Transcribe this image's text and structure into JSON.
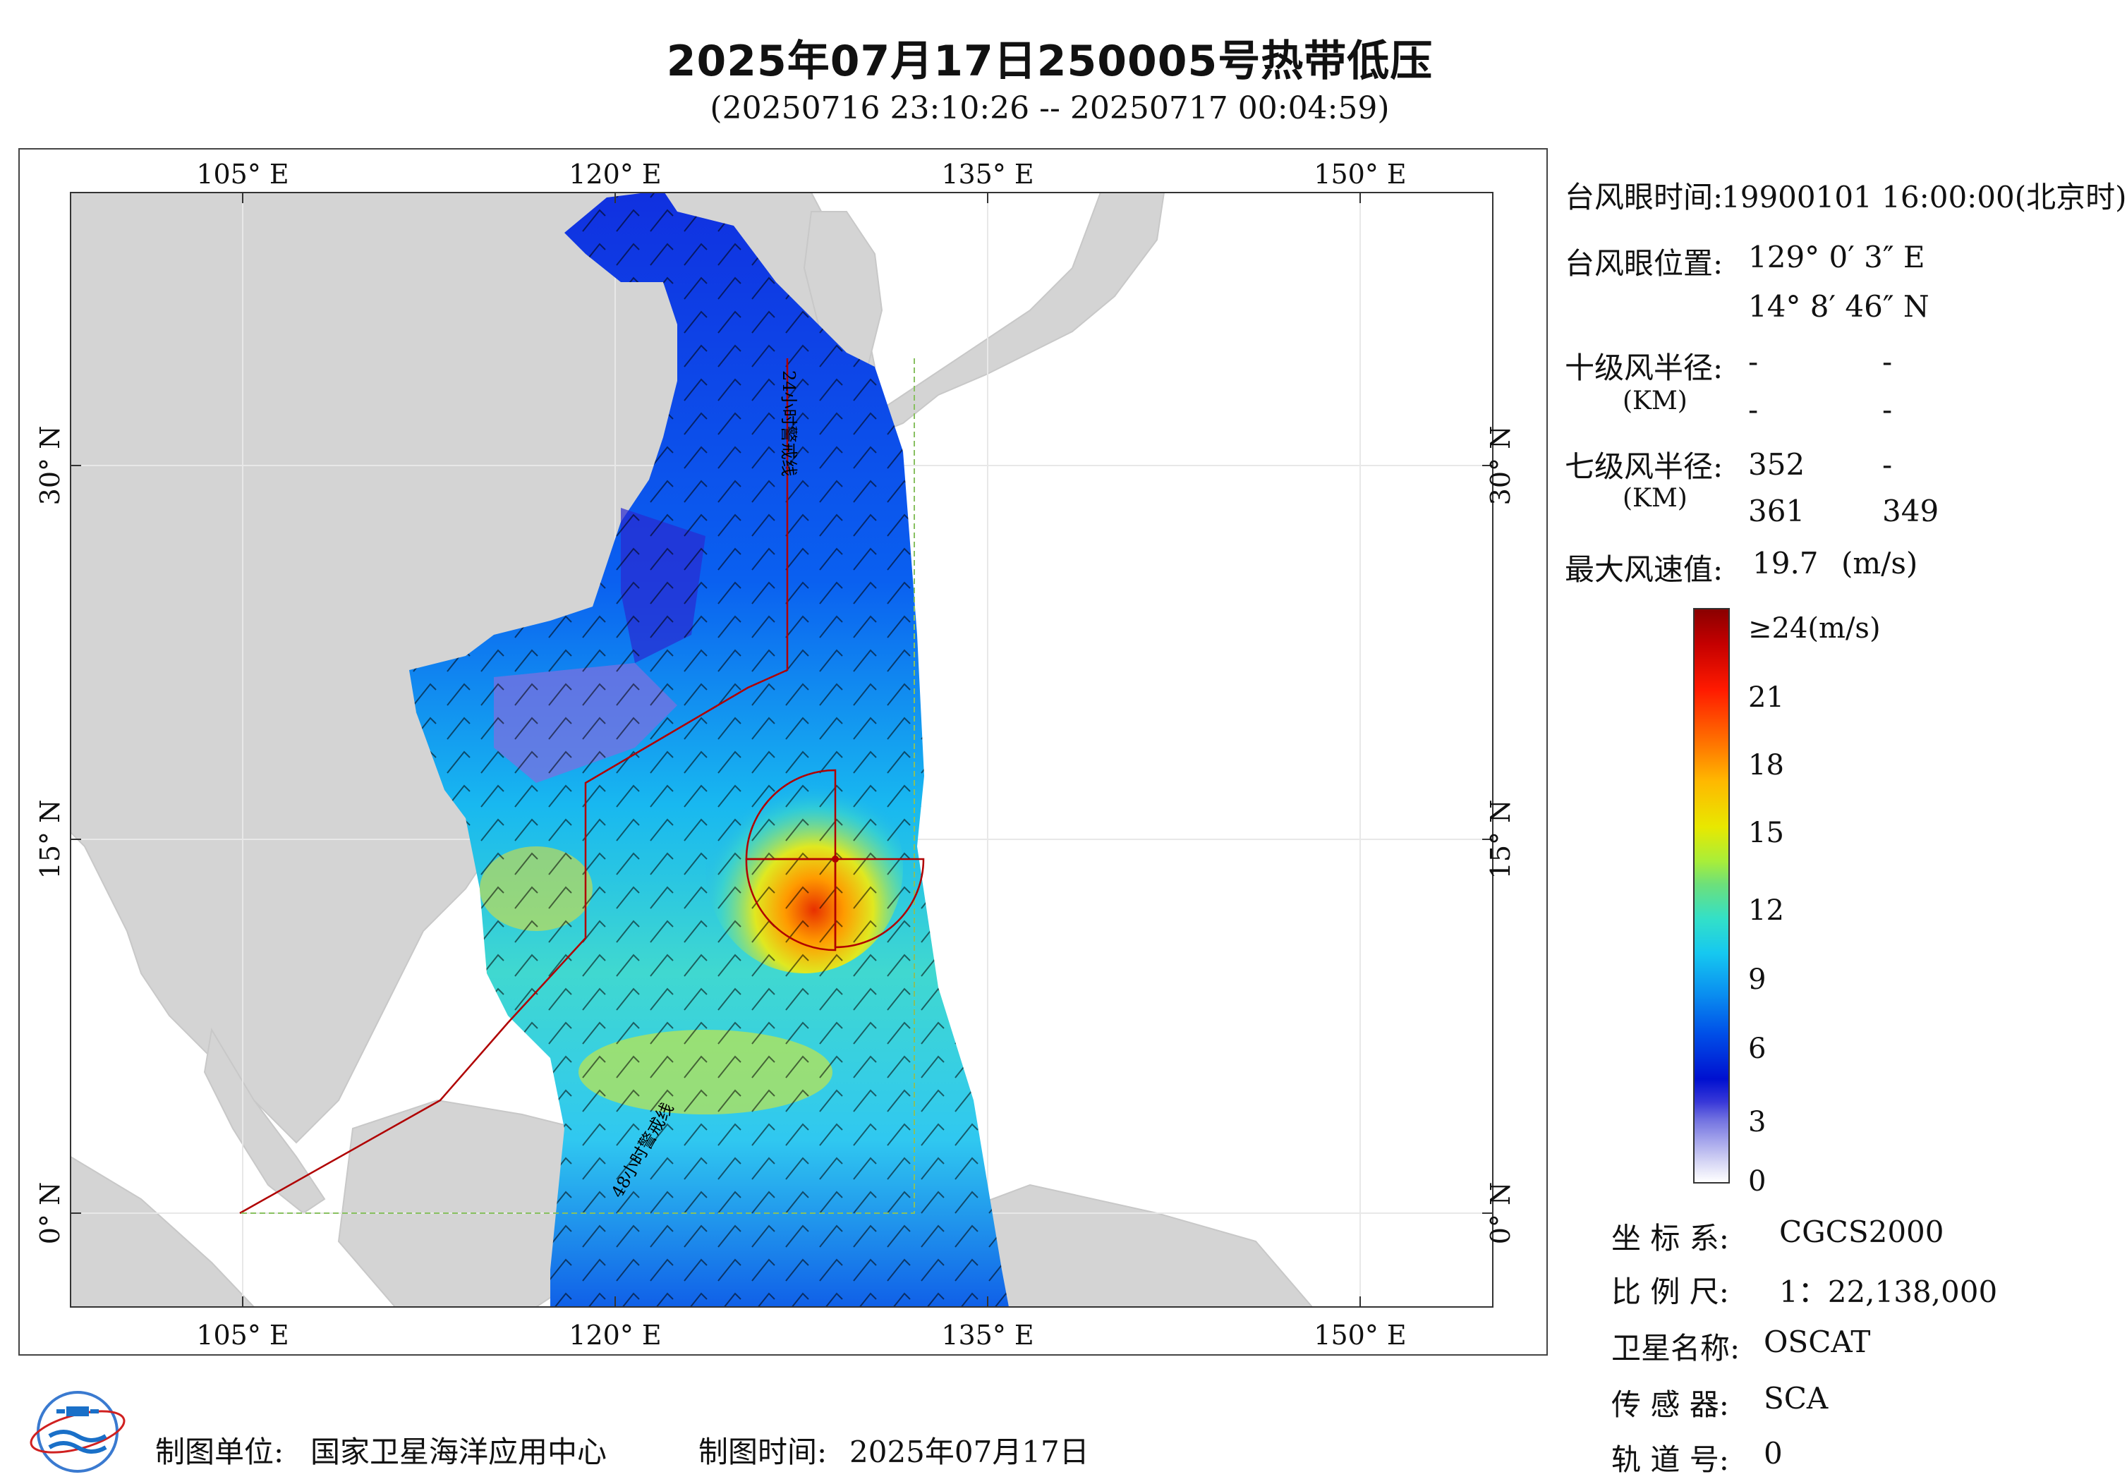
{
  "header": {
    "title": "2025年07月17日250005号热带低压",
    "subtitle": "(20250716 23:10:26 -- 20250717 00:04:59)"
  },
  "map": {
    "top_lon_labels": [
      "105° E",
      "120° E",
      "135° E",
      "150° E"
    ],
    "bottom_lon_labels": [
      "105° E",
      "120° E",
      "135° E",
      "150° E"
    ],
    "left_lat_labels": [
      "30° N",
      "15° N",
      "0° N"
    ],
    "right_lat_labels": [
      "30° N",
      "15° N",
      "0° N"
    ],
    "line_labels": [
      "24小时警戒线",
      "48小时警戒线"
    ],
    "colors": {
      "land": "#d4d4d4",
      "sea": "#ffffff",
      "wind_low": "#0a1ad8",
      "wind_high": "#c40000",
      "warning_line": "#b00000"
    }
  },
  "info": {
    "eye_time_label": "台风眼时间:",
    "eye_time_value": "19900101 16:00:00(北京时)",
    "eye_pos_label": "台风眼位置:",
    "eye_lon": "129° 0′ 3″ E",
    "eye_lat": "14° 8′ 46″ N",
    "r10_label": "十级风半径:",
    "km_label": "(KM)",
    "r10_values": [
      "-",
      "-",
      "-",
      "-"
    ],
    "r7_label": "七级风半径:",
    "r7_values": [
      "352",
      "-",
      "361",
      "349"
    ],
    "maxwind_label": "最大风速值:",
    "maxwind_value": "19.7",
    "maxwind_unit": "(m/s)"
  },
  "colorbar": {
    "top_label": "≥24(m/s)",
    "ticks": [
      "21",
      "18",
      "15",
      "12",
      "9",
      "6",
      "3",
      "0"
    ]
  },
  "meta": {
    "crs_label": "坐 标 系:",
    "crs_value": "CGCS2000",
    "scale_label": "比 例 尺:",
    "scale_value": "1：22,138,000",
    "sat_label": "卫星名称:",
    "sat_value": "OSCAT",
    "sensor_label": "传 感 器:",
    "sensor_value": "SCA",
    "orbit_label": "轨 道 号:",
    "orbit_value": "0"
  },
  "footer": {
    "unit_label": "制图单位:",
    "unit_value": "国家卫星海洋应用中心",
    "time_label": "制图时间:",
    "time_value": "2025年07月17日",
    "logo_icon": "nsoas-logo-icon"
  }
}
